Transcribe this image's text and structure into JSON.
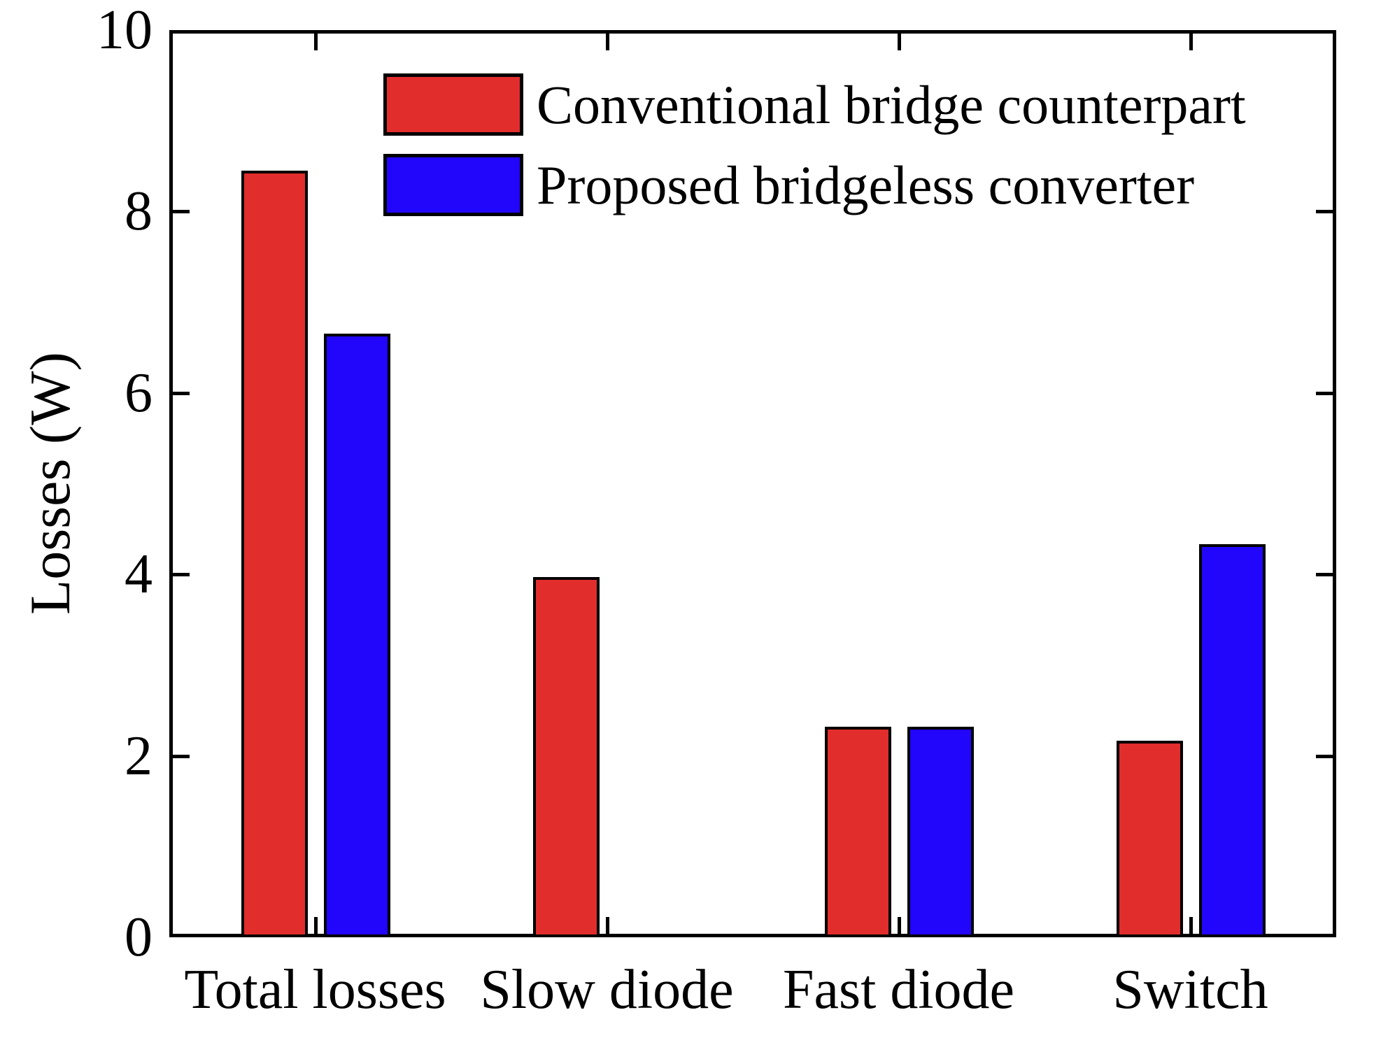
{
  "figure": {
    "background": "#ffffff",
    "axis_color": "#000000",
    "y_ticks": [
      "0",
      "2",
      "4",
      "6",
      "8",
      "10"
    ]
  },
  "chart_data": {
    "type": "bar",
    "title": "",
    "xlabel": "",
    "ylabel": "Losses (W)",
    "categories": [
      "Total losses",
      "Slow diode",
      "Fast diode",
      "Switch"
    ],
    "series": [
      {
        "name": "Conventional bridge counterpart",
        "color": "#e22d2d",
        "values": [
          8.45,
          3.97,
          2.32,
          2.17
        ]
      },
      {
        "name": "Proposed bridgeless converter",
        "color": "#2206fb",
        "values": [
          6.65,
          0,
          2.32,
          4.33
        ]
      }
    ],
    "ylim": [
      0,
      10
    ],
    "y_tick_step": 2,
    "grid": false,
    "box": true,
    "tick_direction": "in",
    "legend_position": "upper-center-inside, no frame",
    "note": "Proposed bridgeless converter has no bar (zero) for Slow diode"
  }
}
